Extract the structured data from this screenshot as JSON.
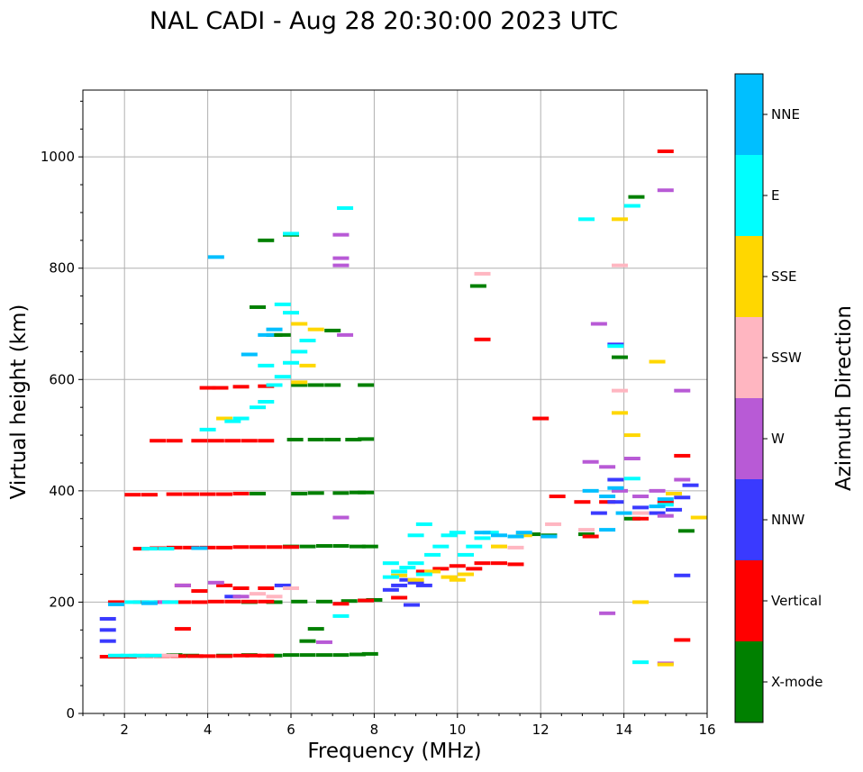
{
  "chart_data": {
    "type": "scatter",
    "title": "NAL CADI - Aug 28 20:30:00 2023 UTC",
    "xlabel": "Frequency (MHz)",
    "ylabel": "Virtual height (km)",
    "xlim": [
      1,
      16
    ],
    "ylim": [
      0,
      1120
    ],
    "xticks": [
      2,
      4,
      6,
      8,
      10,
      12,
      14,
      16
    ],
    "yticks": [
      0,
      200,
      400,
      600,
      800,
      1000
    ],
    "grid": true,
    "colorbar": {
      "label": "Azimuth Direction",
      "categories": [
        {
          "name": "X-mode",
          "color": "#008000"
        },
        {
          "name": "Vertical",
          "color": "#ff0000"
        },
        {
          "name": "NNW",
          "color": "#3a3aff"
        },
        {
          "name": "W",
          "color": "#b85ad6"
        },
        {
          "name": "SSW",
          "color": "#ffb6c1"
        },
        {
          "name": "SSE",
          "color": "#ffd700"
        },
        {
          "name": "E",
          "color": "#00ffff"
        },
        {
          "name": "NNE",
          "color": "#00bfff"
        }
      ]
    },
    "series": [
      {
        "name": "X-mode",
        "color": "#008000",
        "points": [
          [
            3.2,
            105
          ],
          [
            3.6,
            104
          ],
          [
            4.4,
            104
          ],
          [
            5.0,
            105
          ],
          [
            5.6,
            104
          ],
          [
            6.0,
            105
          ],
          [
            6.4,
            105
          ],
          [
            6.8,
            105
          ],
          [
            7.2,
            105
          ],
          [
            7.6,
            106
          ],
          [
            7.9,
            107
          ],
          [
            5.0,
            200
          ],
          [
            5.6,
            200
          ],
          [
            6.2,
            201
          ],
          [
            6.8,
            201
          ],
          [
            7.4,
            202
          ],
          [
            7.8,
            203
          ],
          [
            8.0,
            204
          ],
          [
            6.0,
            300
          ],
          [
            6.4,
            300
          ],
          [
            6.8,
            301
          ],
          [
            7.2,
            301
          ],
          [
            7.6,
            300
          ],
          [
            7.9,
            300
          ],
          [
            5.2,
            395
          ],
          [
            6.2,
            395
          ],
          [
            6.6,
            396
          ],
          [
            7.2,
            396
          ],
          [
            7.6,
            397
          ],
          [
            7.8,
            397
          ],
          [
            6.1,
            492
          ],
          [
            6.6,
            492
          ],
          [
            7.0,
            492
          ],
          [
            7.5,
            492
          ],
          [
            7.8,
            493
          ],
          [
            6.2,
            590
          ],
          [
            6.6,
            590
          ],
          [
            7.0,
            590
          ],
          [
            7.8,
            590
          ],
          [
            7.0,
            688
          ],
          [
            5.8,
            680
          ],
          [
            5.6,
            680
          ],
          [
            5.4,
            850
          ],
          [
            6.0,
            860
          ],
          [
            5.2,
            730
          ],
          [
            6.6,
            152
          ],
          [
            6.4,
            130
          ],
          [
            10.5,
            768
          ],
          [
            11.8,
            322
          ],
          [
            12.2,
            320
          ],
          [
            13.1,
            322
          ],
          [
            14.2,
            350
          ],
          [
            14.3,
            928
          ],
          [
            15.5,
            328
          ],
          [
            13.9,
            640
          ]
        ]
      },
      {
        "name": "Vertical",
        "color": "#ff0000",
        "points": [
          [
            1.6,
            102
          ],
          [
            1.8,
            102
          ],
          [
            2.1,
            102
          ],
          [
            2.5,
            103
          ],
          [
            2.9,
            103
          ],
          [
            3.3,
            103
          ],
          [
            3.7,
            103
          ],
          [
            4.0,
            103
          ],
          [
            4.4,
            103
          ],
          [
            4.8,
            104
          ],
          [
            5.1,
            104
          ],
          [
            5.4,
            104
          ],
          [
            1.8,
            200
          ],
          [
            2.4,
            200
          ],
          [
            2.9,
            200
          ],
          [
            3.4,
            200
          ],
          [
            3.8,
            200
          ],
          [
            4.2,
            201
          ],
          [
            4.6,
            201
          ],
          [
            5.0,
            201
          ],
          [
            5.4,
            201
          ],
          [
            7.2,
            197
          ],
          [
            7.8,
            203
          ],
          [
            8.6,
            208
          ],
          [
            2.4,
            296
          ],
          [
            2.8,
            297
          ],
          [
            3.2,
            298
          ],
          [
            3.6,
            298
          ],
          [
            4.0,
            298
          ],
          [
            4.4,
            298
          ],
          [
            4.8,
            299
          ],
          [
            5.2,
            299
          ],
          [
            5.6,
            299
          ],
          [
            6.0,
            299
          ],
          [
            2.2,
            393
          ],
          [
            2.6,
            393
          ],
          [
            3.2,
            394
          ],
          [
            3.6,
            394
          ],
          [
            4.0,
            394
          ],
          [
            4.4,
            394
          ],
          [
            4.8,
            395
          ],
          [
            2.8,
            490
          ],
          [
            3.2,
            490
          ],
          [
            3.8,
            490
          ],
          [
            4.2,
            490
          ],
          [
            4.6,
            490
          ],
          [
            5.0,
            490
          ],
          [
            5.4,
            490
          ],
          [
            4.0,
            585
          ],
          [
            4.3,
            585
          ],
          [
            4.8,
            587
          ],
          [
            5.4,
            588
          ],
          [
            3.4,
            230
          ],
          [
            3.8,
            220
          ],
          [
            4.4,
            230
          ],
          [
            4.8,
            225
          ],
          [
            5.4,
            225
          ],
          [
            3.4,
            152
          ],
          [
            9.2,
            255
          ],
          [
            9.6,
            260
          ],
          [
            10.0,
            265
          ],
          [
            10.4,
            260
          ],
          [
            10.6,
            270
          ],
          [
            11.0,
            270
          ],
          [
            11.4,
            268
          ],
          [
            10.6,
            672
          ],
          [
            12.0,
            530
          ],
          [
            12.4,
            390
          ],
          [
            13.0,
            380
          ],
          [
            13.2,
            318
          ],
          [
            13.6,
            380
          ],
          [
            14.4,
            350
          ],
          [
            15.0,
            1010
          ],
          [
            15.4,
            463
          ],
          [
            15.0,
            380
          ],
          [
            15.4,
            132
          ]
        ]
      },
      {
        "name": "NNW",
        "color": "#3a3aff",
        "points": [
          [
            1.6,
            170
          ],
          [
            1.6,
            150
          ],
          [
            1.6,
            130
          ],
          [
            4.6,
            210
          ],
          [
            5.8,
            230
          ],
          [
            8.4,
            222
          ],
          [
            8.6,
            230
          ],
          [
            8.8,
            240
          ],
          [
            9.0,
            235
          ],
          [
            9.2,
            230
          ],
          [
            8.9,
            195
          ],
          [
            13.4,
            360
          ],
          [
            13.8,
            380
          ],
          [
            14.4,
            370
          ],
          [
            14.8,
            360
          ],
          [
            15.2,
            366
          ],
          [
            15.4,
            388
          ],
          [
            15.6,
            410
          ],
          [
            15.4,
            248
          ],
          [
            13.8,
            420
          ],
          [
            13.8,
            663
          ]
        ]
      },
      {
        "name": "W",
        "color": "#b85ad6",
        "points": [
          [
            3.0,
            200
          ],
          [
            3.4,
            230
          ],
          [
            4.2,
            235
          ],
          [
            4.8,
            210
          ],
          [
            7.2,
            352
          ],
          [
            7.3,
            680
          ],
          [
            7.2,
            860
          ],
          [
            7.2,
            818
          ],
          [
            7.2,
            805
          ],
          [
            13.2,
            452
          ],
          [
            13.6,
            443
          ],
          [
            13.4,
            700
          ],
          [
            13.6,
            180
          ],
          [
            13.9,
            400
          ],
          [
            14.2,
            458
          ],
          [
            14.4,
            390
          ],
          [
            14.8,
            400
          ],
          [
            15.0,
            940
          ],
          [
            15.4,
            580
          ],
          [
            15.4,
            420
          ],
          [
            15.0,
            355
          ],
          [
            15.0,
            90
          ],
          [
            6.8,
            128
          ]
        ]
      },
      {
        "name": "SSW",
        "color": "#ffb6c1",
        "points": [
          [
            2.3,
            104
          ],
          [
            2.6,
            104
          ],
          [
            2.9,
            104
          ],
          [
            3.1,
            104
          ],
          [
            5.2,
            215
          ],
          [
            5.6,
            210
          ],
          [
            6.0,
            225
          ],
          [
            10.6,
            790
          ],
          [
            11.0,
            300
          ],
          [
            11.4,
            298
          ],
          [
            12.3,
            340
          ],
          [
            13.1,
            330
          ],
          [
            13.9,
            805
          ],
          [
            13.9,
            580
          ],
          [
            14.4,
            360
          ]
        ]
      },
      {
        "name": "SSE",
        "color": "#ffd700",
        "points": [
          [
            4.4,
            530
          ],
          [
            6.2,
            700
          ],
          [
            6.6,
            690
          ],
          [
            6.2,
            595
          ],
          [
            6.4,
            625
          ],
          [
            8.6,
            248
          ],
          [
            9.0,
            240
          ],
          [
            9.4,
            255
          ],
          [
            9.8,
            245
          ],
          [
            10.0,
            240
          ],
          [
            10.2,
            250
          ],
          [
            11.0,
            300
          ],
          [
            11.6,
            320
          ],
          [
            13.9,
            888
          ],
          [
            13.9,
            540
          ],
          [
            14.2,
            500
          ],
          [
            14.8,
            632
          ],
          [
            14.4,
            200
          ],
          [
            15.0,
            88
          ],
          [
            15.8,
            352
          ],
          [
            15.2,
            395
          ]
        ]
      },
      {
        "name": "E",
        "color": "#00ffff",
        "points": [
          [
            1.8,
            104
          ],
          [
            2.1,
            104
          ],
          [
            2.4,
            104
          ],
          [
            2.7,
            104
          ],
          [
            2.2,
            200
          ],
          [
            2.6,
            200
          ],
          [
            3.1,
            200
          ],
          [
            2.6,
            296
          ],
          [
            3.0,
            296
          ],
          [
            4.0,
            510
          ],
          [
            4.6,
            525
          ],
          [
            4.8,
            530
          ],
          [
            5.2,
            550
          ],
          [
            5.4,
            560
          ],
          [
            5.6,
            590
          ],
          [
            5.8,
            605
          ],
          [
            6.0,
            630
          ],
          [
            6.2,
            650
          ],
          [
            6.4,
            670
          ],
          [
            5.4,
            625
          ],
          [
            5.8,
            735
          ],
          [
            6.0,
            720
          ],
          [
            6.0,
            862
          ],
          [
            7.3,
            908
          ],
          [
            7.2,
            175
          ],
          [
            8.4,
            245
          ],
          [
            8.6,
            255
          ],
          [
            8.8,
            262
          ],
          [
            9.0,
            270
          ],
          [
            9.2,
            250
          ],
          [
            9.4,
            285
          ],
          [
            9.6,
            300
          ],
          [
            9.8,
            320
          ],
          [
            10.0,
            325
          ],
          [
            10.2,
            285
          ],
          [
            10.4,
            300
          ],
          [
            10.6,
            315
          ],
          [
            10.8,
            325
          ],
          [
            8.4,
            270
          ],
          [
            9.0,
            320
          ],
          [
            9.2,
            340
          ],
          [
            13.1,
            888
          ],
          [
            13.8,
            660
          ],
          [
            14.2,
            422
          ],
          [
            14.2,
            912
          ],
          [
            14.4,
            92
          ],
          [
            15.0,
            375
          ]
        ]
      },
      {
        "name": "NNE",
        "color": "#00bfff",
        "points": [
          [
            1.8,
            196
          ],
          [
            2.6,
            198
          ],
          [
            3.8,
            297
          ],
          [
            4.2,
            820
          ],
          [
            5.0,
            645
          ],
          [
            5.4,
            680
          ],
          [
            5.6,
            690
          ],
          [
            10.6,
            325
          ],
          [
            11.0,
            320
          ],
          [
            11.4,
            318
          ],
          [
            11.6,
            325
          ],
          [
            12.2,
            318
          ],
          [
            13.2,
            400
          ],
          [
            13.6,
            390
          ],
          [
            13.8,
            405
          ],
          [
            14.0,
            360
          ],
          [
            13.6,
            330
          ],
          [
            14.8,
            372
          ],
          [
            15.0,
            385
          ]
        ]
      }
    ]
  }
}
